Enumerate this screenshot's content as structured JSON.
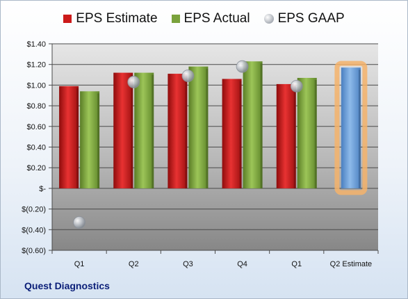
{
  "company": "Quest Diagnostics",
  "chart_data": {
    "type": "bar",
    "categories": [
      "Q1",
      "Q2",
      "Q3",
      "Q4",
      "Q1",
      "Q2 Estimate"
    ],
    "series": [
      {
        "name": "EPS Estimate",
        "type": "bar",
        "color": "#cc1a1a",
        "values": [
          0.99,
          1.12,
          1.11,
          1.06,
          1.01,
          null
        ]
      },
      {
        "name": "EPS Actual",
        "type": "bar",
        "color": "#7aa23c",
        "values": [
          0.94,
          1.12,
          1.18,
          1.23,
          1.07,
          null
        ]
      },
      {
        "name": "EPS GAAP",
        "type": "marker",
        "color": "#a8adb5",
        "values": [
          -0.33,
          1.03,
          1.09,
          1.18,
          0.99,
          null
        ]
      },
      {
        "name": "",
        "type": "bar",
        "color": "#6fa0d8",
        "highlight": "#f5b36b",
        "values": [
          null,
          null,
          null,
          null,
          null,
          1.17
        ]
      }
    ],
    "ylim": [
      -0.6,
      1.4
    ],
    "yticks": [
      -0.6,
      -0.4,
      -0.2,
      0,
      0.2,
      0.4,
      0.6,
      0.8,
      1.0,
      1.2,
      1.4
    ],
    "ytick_labels": [
      "$(0.60)",
      "$(0.40)",
      "$(0.20)",
      "$-",
      "$0.20",
      "$0.40",
      "$0.60",
      "$0.80",
      "$1.00",
      "$1.20",
      "$1.40"
    ],
    "grid": true,
    "legend": "top"
  }
}
